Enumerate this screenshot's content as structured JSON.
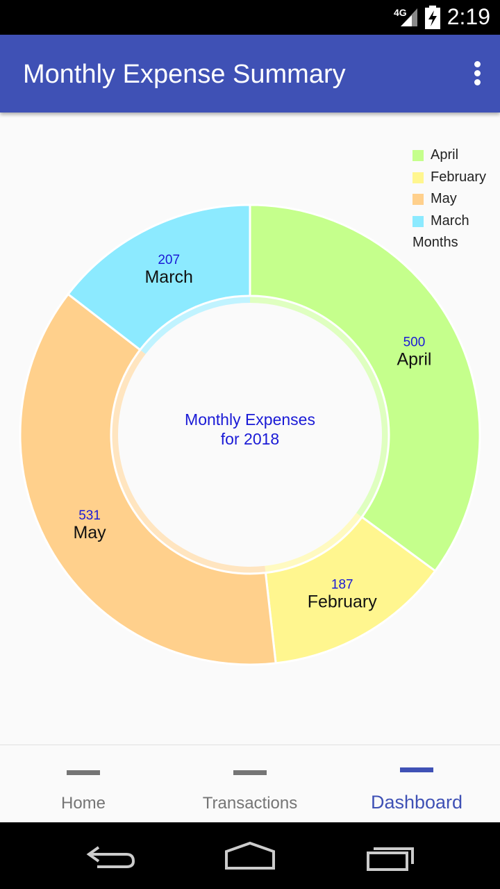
{
  "status_bar": {
    "network": "4G",
    "time": "2:19"
  },
  "app_bar": {
    "title": "Monthly Expense Summary",
    "menu_icon": "overflow-vertical-icon"
  },
  "chart_data": {
    "type": "pie",
    "style": "donut",
    "center_text": [
      "Monthly Expenses",
      "for 2018"
    ],
    "legend_title": "Months",
    "legend_position": "top-right",
    "slices": [
      {
        "label": "April",
        "value": 500,
        "color": "#c5ff8c"
      },
      {
        "label": "February",
        "value": 187,
        "color": "#fff68f"
      },
      {
        "label": "May",
        "value": 531,
        "color": "#ffd08c"
      },
      {
        "label": "March",
        "value": 207,
        "color": "#8ceaff"
      }
    ]
  },
  "bottom_nav": {
    "items": [
      {
        "label": "Home",
        "active": false
      },
      {
        "label": "Transactions",
        "active": false
      },
      {
        "label": "Dashboard",
        "active": true
      }
    ],
    "active_color": "#3f51b5",
    "inactive_color": "#757575"
  },
  "system_nav": {
    "icons": [
      "back-icon",
      "home-icon",
      "recents-icon"
    ]
  }
}
